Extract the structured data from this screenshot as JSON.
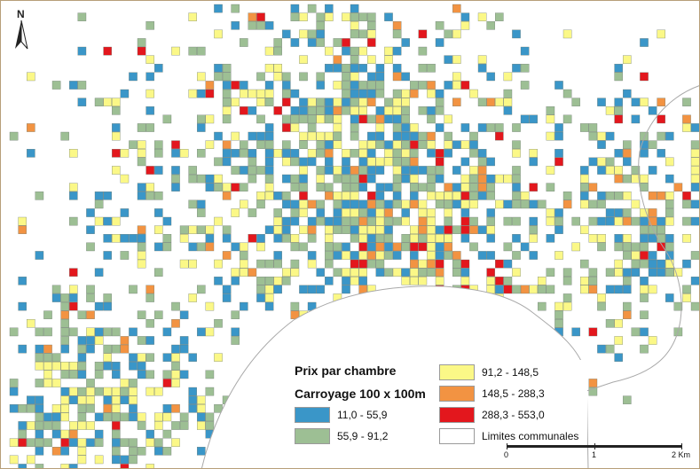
{
  "legend": {
    "title": "Prix par chambre",
    "subtitle": "Carroyage 100 x 100m",
    "classes": [
      {
        "label": "11,0 - 55,9",
        "color": "#3a96c8"
      },
      {
        "label": "55,9 - 91,2",
        "color": "#9dbf94"
      },
      {
        "label": "91,2 - 148,5",
        "color": "#fbf887"
      },
      {
        "label": "148,5 - 288,3",
        "color": "#f29342"
      },
      {
        "label": "288,3 - 553,0",
        "color": "#e3171d"
      }
    ],
    "limits_label": "Limites communales"
  },
  "north_arrow": {
    "letter": "N"
  },
  "scale_bar": {
    "labels": [
      "0",
      "1",
      "2 Km"
    ]
  },
  "colors": {
    "coastline": "#a9a9a9",
    "grid_border": "#6e7a70",
    "frame": "#b79f79"
  }
}
